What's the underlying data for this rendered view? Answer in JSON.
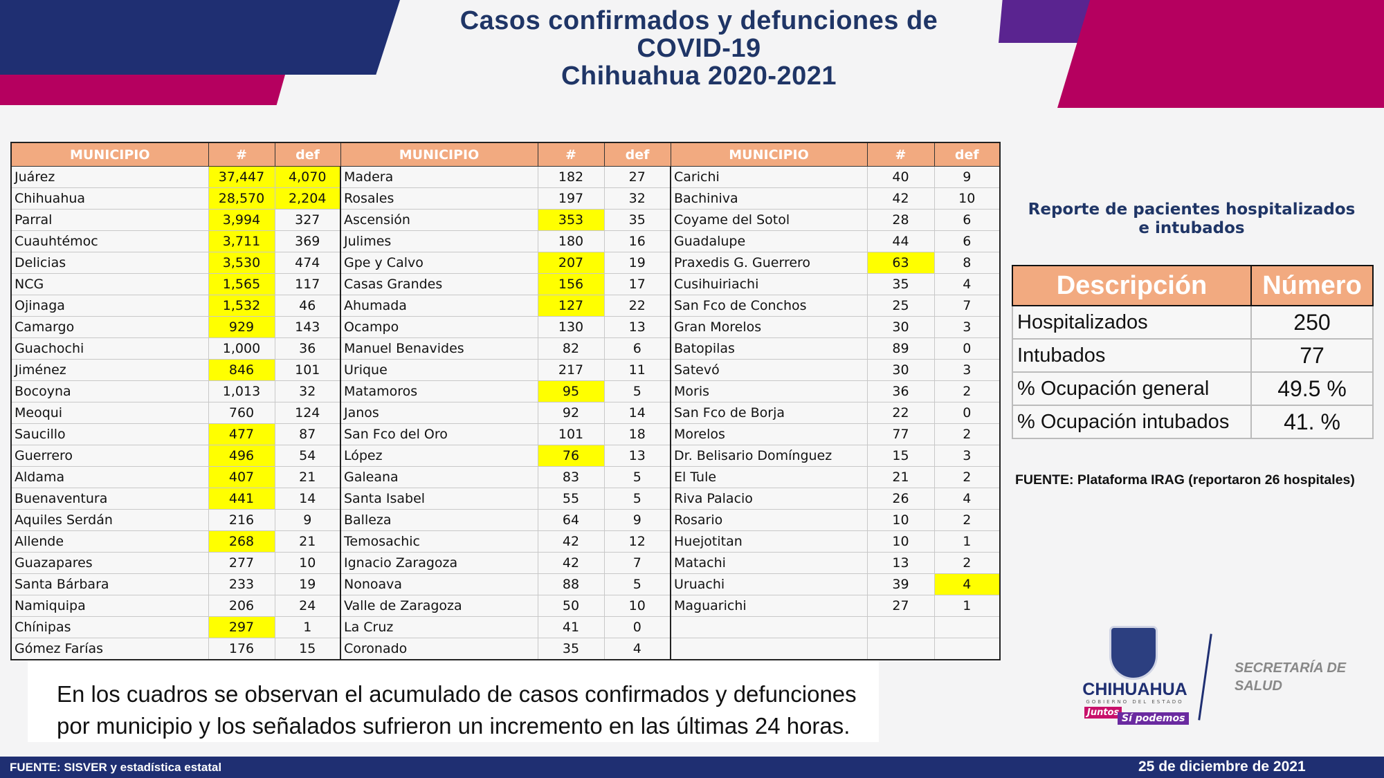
{
  "colors": {
    "navy": "#1f2f72",
    "magenta": "#b5005f",
    "purple": "#5a2490",
    "header": "#f2aa80",
    "highlight": "#ffff00",
    "title": "#1f3566"
  },
  "title": {
    "line1": "Casos confirmados y defunciones de",
    "line2": "COVID-19",
    "line3": "Chihuahua 2020-2021"
  },
  "table": {
    "headers": {
      "municipio": "MUNICIPIO",
      "cases": "#",
      "deaths": "def"
    },
    "columns": [
      [
        {
          "name": "Juárez",
          "cases": "37,447",
          "deaths": "4,070",
          "hc": true,
          "hd": true
        },
        {
          "name": "Chihuahua",
          "cases": "28,570",
          "deaths": "2,204",
          "hc": true,
          "hd": true
        },
        {
          "name": "Parral",
          "cases": "3,994",
          "deaths": "327",
          "hc": true
        },
        {
          "name": "Cuauhtémoc",
          "cases": "3,711",
          "deaths": "369",
          "hc": true
        },
        {
          "name": "Delicias",
          "cases": "3,530",
          "deaths": "474",
          "hc": true
        },
        {
          "name": "NCG",
          "cases": "1,565",
          "deaths": "117",
          "hc": true
        },
        {
          "name": "Ojinaga",
          "cases": "1,532",
          "deaths": "46",
          "hc": true
        },
        {
          "name": "Camargo",
          "cases": "929",
          "deaths": "143",
          "hc": true
        },
        {
          "name": "Guachochi",
          "cases": "1,000",
          "deaths": "36"
        },
        {
          "name": "Jiménez",
          "cases": "846",
          "deaths": "101",
          "hc": true
        },
        {
          "name": "Bocoyna",
          "cases": "1,013",
          "deaths": "32"
        },
        {
          "name": "Meoqui",
          "cases": "760",
          "deaths": "124"
        },
        {
          "name": "Saucillo",
          "cases": "477",
          "deaths": "87",
          "hc": true
        },
        {
          "name": "Guerrero",
          "cases": "496",
          "deaths": "54",
          "hc": true
        },
        {
          "name": "Aldama",
          "cases": "407",
          "deaths": "21",
          "hc": true
        },
        {
          "name": "Buenaventura",
          "cases": "441",
          "deaths": "14",
          "hc": true
        },
        {
          "name": "Aquiles Serdán",
          "cases": "216",
          "deaths": "9"
        },
        {
          "name": "Allende",
          "cases": "268",
          "deaths": "21",
          "hc": true
        },
        {
          "name": "Guazapares",
          "cases": "277",
          "deaths": "10"
        },
        {
          "name": "Santa Bárbara",
          "cases": "233",
          "deaths": "19"
        },
        {
          "name": "Namiquipa",
          "cases": "206",
          "deaths": "24"
        },
        {
          "name": "Chínipas",
          "cases": "297",
          "deaths": "1",
          "hc": true
        },
        {
          "name": "Gómez Farías",
          "cases": "176",
          "deaths": "15"
        }
      ],
      [
        {
          "name": "Madera",
          "cases": "182",
          "deaths": "27"
        },
        {
          "name": "Rosales",
          "cases": "197",
          "deaths": "32"
        },
        {
          "name": "Ascensión",
          "cases": "353",
          "deaths": "35",
          "hc": true
        },
        {
          "name": "Julimes",
          "cases": "180",
          "deaths": "16"
        },
        {
          "name": "Gpe y Calvo",
          "cases": "207",
          "deaths": "19",
          "hc": true
        },
        {
          "name": "Casas Grandes",
          "cases": "156",
          "deaths": "17",
          "hc": true
        },
        {
          "name": "Ahumada",
          "cases": "127",
          "deaths": "22",
          "hc": true
        },
        {
          "name": "Ocampo",
          "cases": "130",
          "deaths": "13"
        },
        {
          "name": "Manuel Benavides",
          "cases": "82",
          "deaths": "6"
        },
        {
          "name": "Urique",
          "cases": "217",
          "deaths": "11"
        },
        {
          "name": "Matamoros",
          "cases": "95",
          "deaths": "5",
          "hc": true
        },
        {
          "name": "Janos",
          "cases": "92",
          "deaths": "14"
        },
        {
          "name": "San Fco del Oro",
          "cases": "101",
          "deaths": "18"
        },
        {
          "name": "López",
          "cases": "76",
          "deaths": "13",
          "hc": true
        },
        {
          "name": "Galeana",
          "cases": "83",
          "deaths": "5"
        },
        {
          "name": "Santa Isabel",
          "cases": "55",
          "deaths": "5"
        },
        {
          "name": "Balleza",
          "cases": "64",
          "deaths": "9"
        },
        {
          "name": "Temosachic",
          "cases": "42",
          "deaths": "12"
        },
        {
          "name": "Ignacio Zaragoza",
          "cases": "42",
          "deaths": "7"
        },
        {
          "name": "Nonoava",
          "cases": "88",
          "deaths": "5"
        },
        {
          "name": "Valle de Zaragoza",
          "cases": "50",
          "deaths": "10"
        },
        {
          "name": "La Cruz",
          "cases": "41",
          "deaths": "0"
        },
        {
          "name": "Coronado",
          "cases": "35",
          "deaths": "4"
        }
      ],
      [
        {
          "name": "Carichi",
          "cases": "40",
          "deaths": "9"
        },
        {
          "name": "Bachiniva",
          "cases": "42",
          "deaths": "10"
        },
        {
          "name": "Coyame del Sotol",
          "cases": "28",
          "deaths": "6"
        },
        {
          "name": "Guadalupe",
          "cases": "44",
          "deaths": "6"
        },
        {
          "name": "Praxedis G. Guerrero",
          "cases": "63",
          "deaths": "8",
          "hc": true
        },
        {
          "name": "Cusihuiriachi",
          "cases": "35",
          "deaths": "4"
        },
        {
          "name": "San Fco de Conchos",
          "cases": "25",
          "deaths": "7"
        },
        {
          "name": "Gran Morelos",
          "cases": "30",
          "deaths": "3"
        },
        {
          "name": "Batopilas",
          "cases": "89",
          "deaths": "0"
        },
        {
          "name": "Satevó",
          "cases": "30",
          "deaths": "3"
        },
        {
          "name": "Moris",
          "cases": "36",
          "deaths": "2"
        },
        {
          "name": "San Fco de Borja",
          "cases": "22",
          "deaths": "0"
        },
        {
          "name": "Morelos",
          "cases": "77",
          "deaths": "2"
        },
        {
          "name": "Dr. Belisario Domínguez",
          "cases": "15",
          "deaths": "3"
        },
        {
          "name": "El Tule",
          "cases": "21",
          "deaths": "2"
        },
        {
          "name": "Riva Palacio",
          "cases": "26",
          "deaths": "4"
        },
        {
          "name": "Rosario",
          "cases": "10",
          "deaths": "2"
        },
        {
          "name": "Huejotitan",
          "cases": "10",
          "deaths": "1"
        },
        {
          "name": "Matachi",
          "cases": "13",
          "deaths": "2"
        },
        {
          "name": "Uruachi",
          "cases": "39",
          "deaths": "4",
          "hd": true
        },
        {
          "name": "Maguarichi",
          "cases": "27",
          "deaths": "1"
        },
        {
          "name": "",
          "cases": "",
          "deaths": ""
        },
        {
          "name": "",
          "cases": "",
          "deaths": ""
        }
      ]
    ]
  },
  "hospital": {
    "subtitle_line1": "Reporte de pacientes hospitalizados",
    "subtitle_line2": "e intubados",
    "headers": {
      "desc": "Descripción",
      "num": "Número"
    },
    "rows": [
      {
        "label": "Hospitalizados",
        "value": "250"
      },
      {
        "label": "Intubados",
        "value": "77"
      },
      {
        "label": "% Ocupación general",
        "value": "49.5 %"
      },
      {
        "label": "% Ocupación intubados",
        "value": "41. %"
      }
    ],
    "source": "FUENTE: Plataforma IRAG (reportaron 26 hospitales)"
  },
  "note": {
    "line1": "En los cuadros se observan el acumulado de casos confirmados y defunciones",
    "line2": "por municipio y los señalados sufrieron un incremento en las últimas 24 horas."
  },
  "logo": {
    "name": "CHIHUAHUA",
    "subtitle": "GOBIERNO DEL ESTADO",
    "slogan1": "Juntos",
    "slogan2": "Sí podemos",
    "secretaria_line1": "SECRETARÍA DE",
    "secretaria_line2": "SALUD"
  },
  "footer": {
    "source": "FUENTE: SISVER y estadística estatal",
    "date": "25 de diciembre de 2021"
  }
}
